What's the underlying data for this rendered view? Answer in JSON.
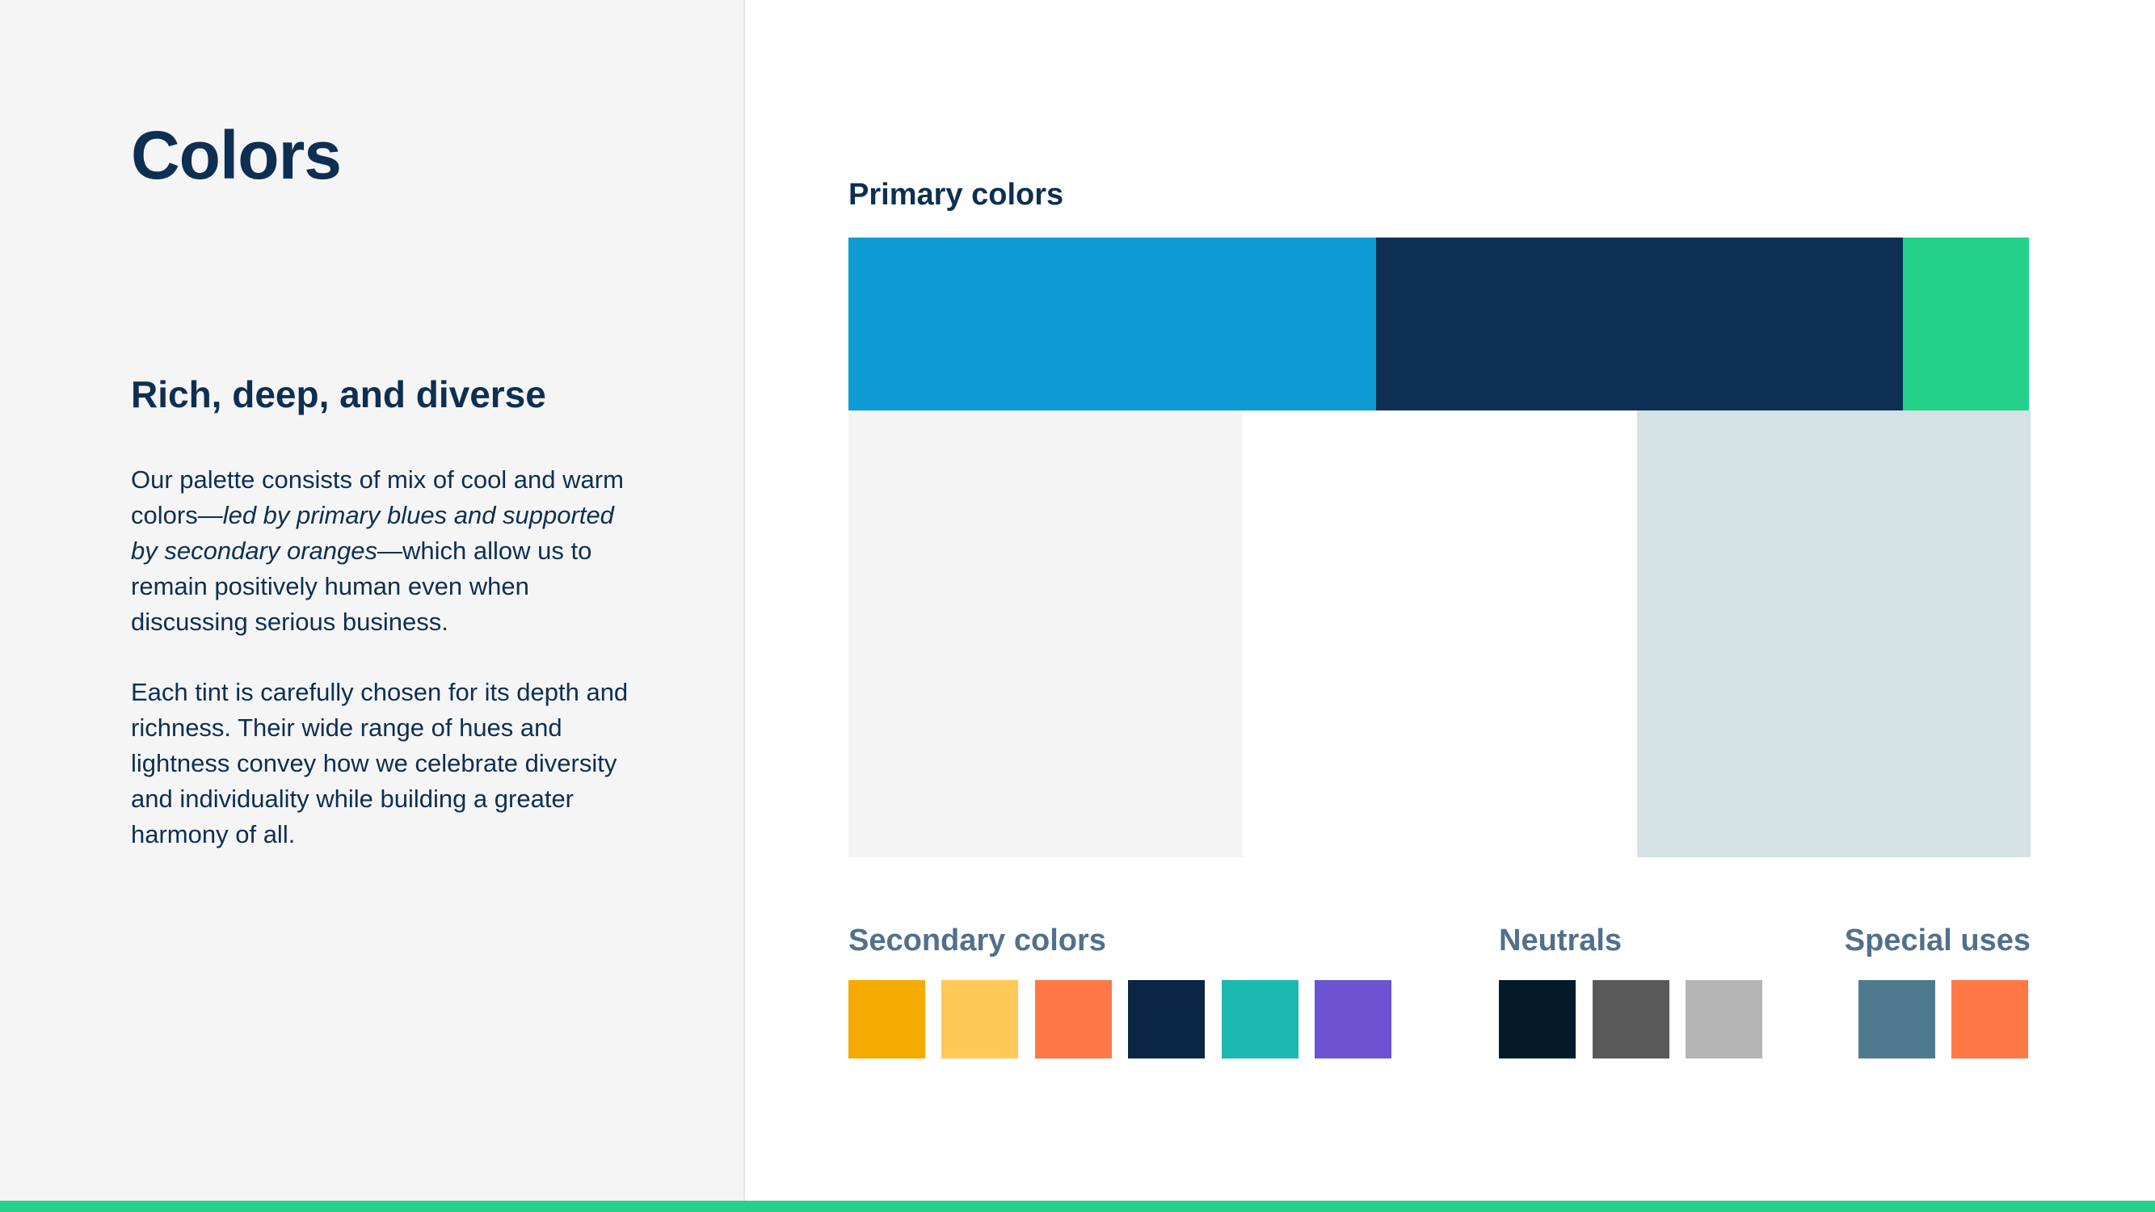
{
  "page": {
    "title": "Colors",
    "subheading": "Rich, deep, and diverse",
    "paragraph1": {
      "lead": "Our palette consists of mix of cool and warm colors—",
      "emphasis": "led by primary blues and supported by secondary oranges",
      "tail": "—which allow us to remain positively human even when discussing serious business."
    },
    "paragraph2": "Each tint is carefully chosen for its depth and richness. Their wide range of hues and lightness convey how we celebrate diversity and individuality while building a greater harmony of all."
  },
  "primary": {
    "label": "Primary colors",
    "top_row": [
      {
        "name": "primary-blue",
        "color": "#0f9bd4"
      },
      {
        "name": "primary-navy",
        "color": "#0d3054"
      },
      {
        "name": "primary-green",
        "color": "#23d18b"
      }
    ],
    "bottom_row": [
      {
        "name": "light-gray",
        "color": "#f4f4f4"
      },
      {
        "name": "white",
        "color": "#ffffff"
      },
      {
        "name": "pale-teal",
        "color": "#d5e2e3"
      }
    ]
  },
  "secondary": {
    "label": "Secondary colors",
    "swatches": [
      "#f5aa00",
      "#ffc857",
      "#ff7846",
      "#0b2644",
      "#1bb8b0",
      "#6b53d1"
    ]
  },
  "neutrals": {
    "label": "Neutrals",
    "swatches": [
      "#031a28",
      "#595959",
      "#b5b5b5"
    ]
  },
  "special": {
    "label": "Special uses",
    "swatches": [
      "#4f7a8d",
      "#ff7846"
    ]
  },
  "accent": {
    "bottom_bar": "#23d18b"
  }
}
